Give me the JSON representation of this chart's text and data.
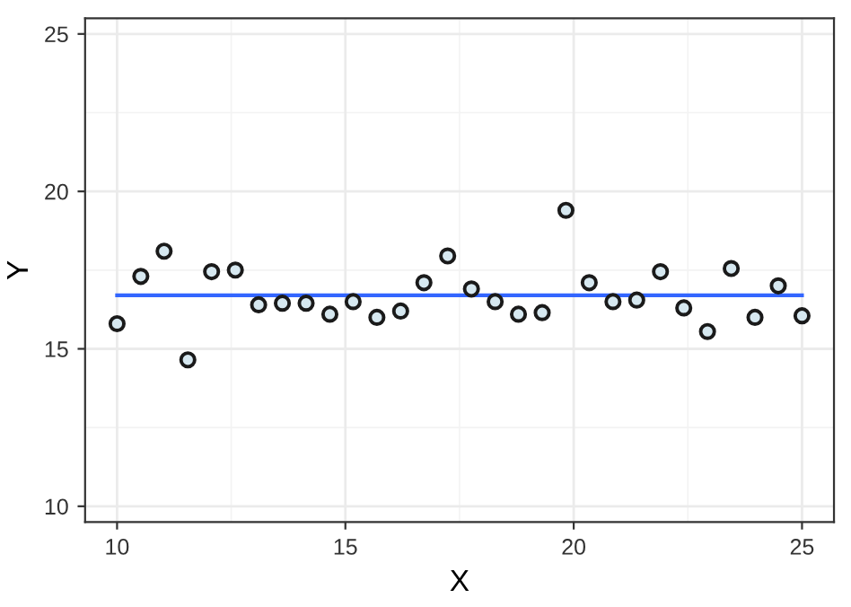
{
  "chart_data": {
    "type": "scatter",
    "xlabel": "X",
    "ylabel": "Y",
    "xlim": [
      9.3,
      25.7
    ],
    "xticks": [
      10,
      15,
      20,
      25
    ],
    "ylim": [
      9.5,
      25.5
    ],
    "yticks": [
      10,
      15,
      20,
      25
    ],
    "grid": true,
    "marker": "circle",
    "series": [
      {
        "color": "#d6e8f0",
        "x": [
          10,
          10.52,
          11.03,
          11.55,
          12.07,
          12.59,
          13.1,
          13.62,
          14.14,
          14.66,
          15.17,
          15.69,
          16.21,
          16.72,
          17.24,
          17.76,
          18.28,
          18.79,
          19.31,
          19.83,
          20.34,
          20.86,
          21.38,
          21.9,
          22.41,
          22.93,
          23.45,
          23.97,
          24.48,
          25
        ],
        "values": [
          15.8,
          17.3,
          18.1,
          14.65,
          17.45,
          17.5,
          16.4,
          16.45,
          16.45,
          16.1,
          16.5,
          16.0,
          16.2,
          17.1,
          17.95,
          16.9,
          16.5,
          16.1,
          16.15,
          19.4,
          17.1,
          16.5,
          16.55,
          17.45,
          16.3,
          15.55,
          17.55,
          16.0,
          17.0,
          16.05
        ]
      },
      {
        "type": "line",
        "color": "#3366ff",
        "marker": "none",
        "x": [
          10,
          25
        ],
        "values": [
          16.7,
          16.7
        ]
      }
    ]
  }
}
